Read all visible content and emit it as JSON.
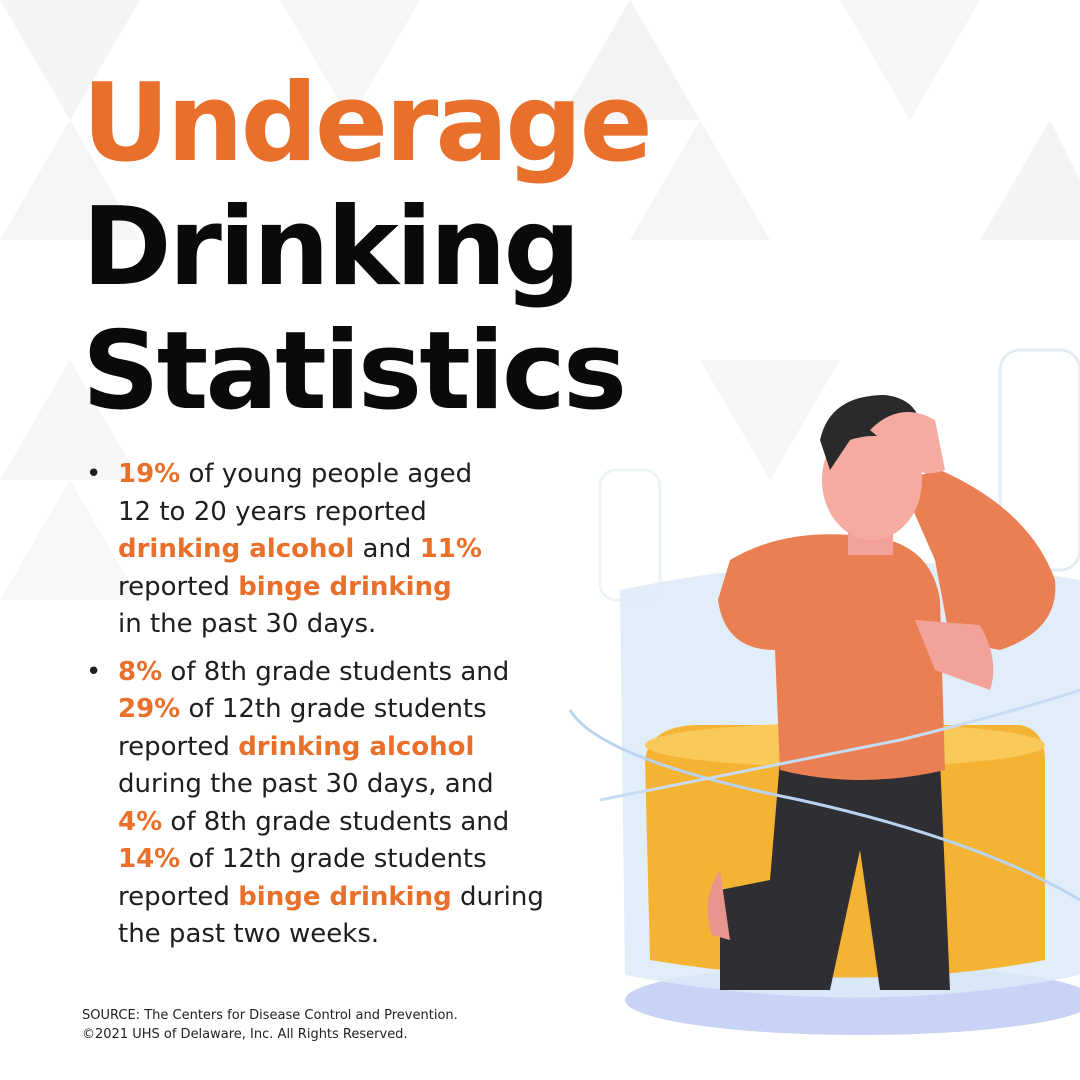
{
  "title": {
    "lines": [
      "Underage",
      "Drinking",
      "Statistics"
    ]
  },
  "bullets": [
    {
      "lines": [
        [
          {
            "text": "19%",
            "highlight": true
          },
          " of young people aged"
        ],
        [
          "12 to 20 years reported"
        ],
        [
          {
            "text": "drinking alcohol",
            "highlight": true
          },
          " and ",
          {
            "text": "11%",
            "highlight": true
          }
        ],
        [
          "reported ",
          {
            "text": "binge drinking",
            "highlight": true
          }
        ],
        [
          "in the past 30 days."
        ]
      ]
    },
    {
      "lines": [
        [
          {
            "text": "8%",
            "highlight": true
          },
          " of 8th grade students and"
        ],
        [
          {
            "text": "29%",
            "highlight": true
          },
          " of 12th grade students"
        ],
        [
          "reported ",
          {
            "text": "drinking alcohol",
            "highlight": true
          }
        ],
        [
          "during the past 30 days, and"
        ],
        [
          {
            "text": "4%",
            "highlight": true
          },
          " of 8th grade students and"
        ],
        [
          {
            "text": "14%",
            "highlight": true
          },
          " of 12th grade students"
        ],
        [
          "reported ",
          {
            "text": "binge drinking",
            "highlight": true
          },
          " during"
        ],
        [
          "the past two weeks."
        ]
      ]
    }
  ],
  "footer": {
    "lines": [
      "SOURCE: The Centers for Disease Control and Prevention.",
      "©2021 UHS of Delaware, Inc. All Rights Reserved."
    ]
  }
}
